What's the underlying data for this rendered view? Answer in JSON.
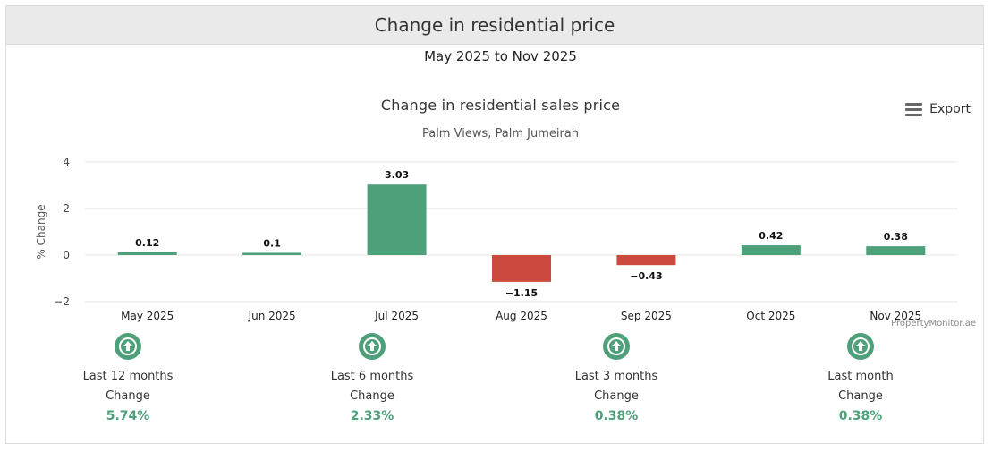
{
  "header": {
    "title": "Change in residential price"
  },
  "period": "May 2025 to Nov 2025",
  "export": {
    "label": "Export",
    "icon": "menu-icon"
  },
  "credit": "PropertyMonitor.ae",
  "colors": {
    "positive": "#4ea07a",
    "negative": "#cc4a3d",
    "grid": "#e6e6e6"
  },
  "chart_data": {
    "type": "bar",
    "title": "Change in residential sales price",
    "subtitle": "Palm Views, Palm Jumeirah",
    "xlabel": "",
    "ylabel": "% Change",
    "ylim": [
      -2,
      4
    ],
    "yticks": [
      4,
      2,
      0,
      -2
    ],
    "ytick_labels": [
      "4",
      "2",
      "0",
      "−2"
    ],
    "grid": true,
    "categories": [
      "May 2025",
      "Jun 2025",
      "Jul 2025",
      "Aug 2025",
      "Sep 2025",
      "Oct 2025",
      "Nov 2025"
    ],
    "values": [
      0.12,
      0.1,
      3.03,
      -1.15,
      -0.43,
      0.42,
      0.38
    ],
    "value_labels": [
      "0.12",
      "0.1",
      "3.03",
      "−1.15",
      "−0.43",
      "0.42",
      "0.38"
    ]
  },
  "stats": [
    {
      "label": "Last 12 months",
      "sub": "Change",
      "value": "5.74%",
      "icon": "arrow-up-circle-icon"
    },
    {
      "label": "Last 6 months",
      "sub": "Change",
      "value": "2.33%",
      "icon": "arrow-up-circle-icon"
    },
    {
      "label": "Last 3 months",
      "sub": "Change",
      "value": "0.38%",
      "icon": "arrow-up-circle-icon"
    },
    {
      "label": "Last month",
      "sub": "Change",
      "value": "0.38%",
      "icon": "arrow-up-circle-icon"
    }
  ]
}
